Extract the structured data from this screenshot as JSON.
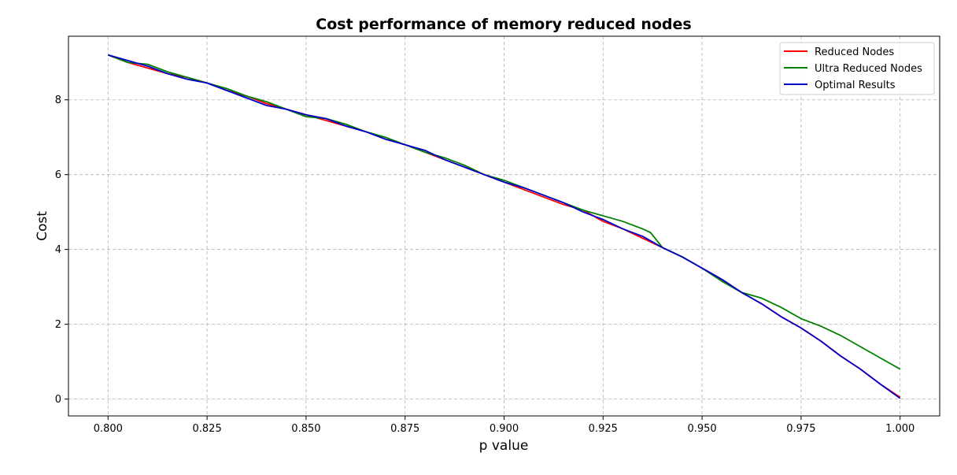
{
  "chart_data": {
    "type": "line",
    "title": "Cost performance of memory reduced nodes",
    "xlabel": "p value",
    "ylabel": "Cost",
    "xlim": [
      0.79,
      1.01
    ],
    "ylim": [
      -0.45,
      9.7
    ],
    "xticks": [
      "0.800",
      "0.825",
      "0.850",
      "0.875",
      "0.900",
      "0.925",
      "0.950",
      "0.975",
      "1.000"
    ],
    "yticks": [
      "0",
      "2",
      "4",
      "6",
      "8"
    ],
    "grid": true,
    "legend_position": "top-right",
    "series": [
      {
        "name": "Reduced Nodes",
        "color": "#ff0000",
        "x": [
          0.8,
          0.805,
          0.81,
          0.815,
          0.82,
          0.825,
          0.83,
          0.835,
          0.84,
          0.845,
          0.85,
          0.855,
          0.86,
          0.865,
          0.87,
          0.875,
          0.88,
          0.885,
          0.89,
          0.895,
          0.9,
          0.905,
          0.91,
          0.915,
          0.92,
          0.925,
          0.93,
          0.935,
          0.94,
          0.945,
          0.95,
          0.955,
          0.96,
          0.965,
          0.97,
          0.975,
          0.98,
          0.985,
          0.99,
          0.995,
          1.0
        ],
        "y": [
          9.2,
          9.0,
          8.85,
          8.7,
          8.6,
          8.45,
          8.25,
          8.1,
          7.9,
          7.75,
          7.6,
          7.45,
          7.3,
          7.15,
          6.95,
          6.8,
          6.6,
          6.4,
          6.2,
          6.0,
          5.8,
          5.6,
          5.4,
          5.2,
          5.05,
          4.75,
          4.55,
          4.3,
          4.05,
          3.8,
          3.5,
          3.2,
          2.85,
          2.55,
          2.2,
          1.9,
          1.55,
          1.15,
          0.8,
          0.4,
          0.05
        ]
      },
      {
        "name": "Ultra Reduced Nodes",
        "color": "#008000",
        "x": [
          0.8,
          0.805,
          0.81,
          0.815,
          0.82,
          0.825,
          0.83,
          0.835,
          0.84,
          0.845,
          0.85,
          0.855,
          0.86,
          0.865,
          0.87,
          0.875,
          0.88,
          0.885,
          0.89,
          0.895,
          0.9,
          0.905,
          0.91,
          0.915,
          0.92,
          0.925,
          0.93,
          0.935,
          0.937,
          0.94,
          0.945,
          0.95,
          0.955,
          0.96,
          0.965,
          0.97,
          0.975,
          0.98,
          0.985,
          0.99,
          0.995,
          1.0
        ],
        "y": [
          9.2,
          9.0,
          8.95,
          8.75,
          8.6,
          8.45,
          8.3,
          8.1,
          7.95,
          7.75,
          7.55,
          7.5,
          7.35,
          7.15,
          7.0,
          6.8,
          6.6,
          6.45,
          6.25,
          6.0,
          5.85,
          5.65,
          5.45,
          5.25,
          5.05,
          4.9,
          4.75,
          4.55,
          4.45,
          4.05,
          3.8,
          3.5,
          3.15,
          2.85,
          2.7,
          2.45,
          2.15,
          1.95,
          1.7,
          1.4,
          1.1,
          0.8
        ]
      },
      {
        "name": "Optimal Results",
        "color": "#0000cc",
        "x": [
          0.8,
          0.805,
          0.81,
          0.815,
          0.82,
          0.825,
          0.83,
          0.835,
          0.84,
          0.845,
          0.85,
          0.855,
          0.86,
          0.865,
          0.87,
          0.875,
          0.88,
          0.885,
          0.89,
          0.895,
          0.9,
          0.905,
          0.91,
          0.915,
          0.92,
          0.925,
          0.93,
          0.935,
          0.94,
          0.945,
          0.95,
          0.955,
          0.96,
          0.965,
          0.97,
          0.975,
          0.98,
          0.985,
          0.99,
          0.995,
          1.0
        ],
        "y": [
          9.2,
          9.05,
          8.9,
          8.7,
          8.55,
          8.45,
          8.25,
          8.05,
          7.85,
          7.75,
          7.6,
          7.5,
          7.3,
          7.15,
          6.95,
          6.8,
          6.65,
          6.4,
          6.2,
          6.0,
          5.8,
          5.65,
          5.45,
          5.25,
          5.0,
          4.8,
          4.55,
          4.35,
          4.05,
          3.8,
          3.5,
          3.2,
          2.85,
          2.55,
          2.2,
          1.9,
          1.55,
          1.15,
          0.8,
          0.4,
          0.02
        ]
      }
    ]
  }
}
